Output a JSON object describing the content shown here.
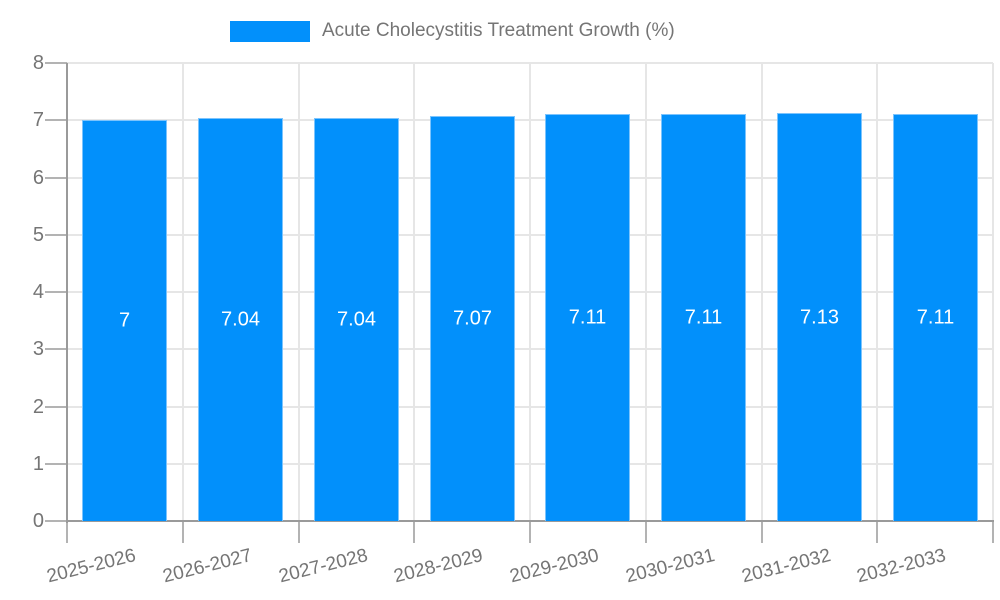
{
  "chart_data": {
    "type": "bar",
    "title": "Acute Cholecystitis Treatment Growth (%)",
    "categories": [
      "2025-2026",
      "2026-2027",
      "2027-2028",
      "2028-2029",
      "2029-2030",
      "2030-2031",
      "2031-2032",
      "2032-2033"
    ],
    "values": [
      7,
      7.04,
      7.04,
      7.07,
      7.11,
      7.11,
      7.13,
      7.11
    ],
    "bar_labels": [
      "7",
      "7.04",
      "7.04",
      "7.07",
      "7.11",
      "7.11",
      "7.13",
      "7.11"
    ],
    "xlabel": "",
    "ylabel": "",
    "ylim": [
      0,
      8
    ],
    "yticks": [
      "0",
      "1",
      "2",
      "3",
      "4",
      "5",
      "6",
      "7",
      "8"
    ],
    "grid": true,
    "legend_position": "top",
    "colors": {
      "bar": "#0290fb",
      "bar_border": "#7cc4fd",
      "grid": "#e6e6e6",
      "axis": "#9a9a9a",
      "tick": "#b3b3b3",
      "text": "#757575",
      "bar_label": "#ffffff"
    }
  }
}
